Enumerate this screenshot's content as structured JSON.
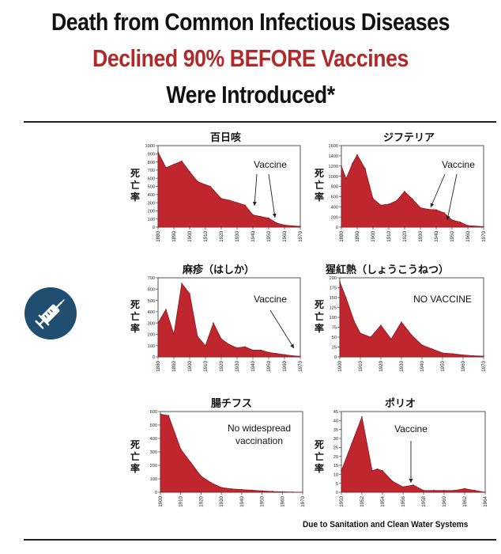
{
  "header": {
    "line1": "Death from Common Infectious Diseases",
    "line2": "Declined 90% BEFORE Vaccines",
    "line3": "Were Introduced*"
  },
  "footnote": "Due to Sanitation and Clean Water Systems",
  "icon": "syringe-icon",
  "colors": {
    "fill": "#c0262e",
    "accent": "#b02a2a",
    "badge": "#1f4e70"
  },
  "chart_data": [
    {
      "type": "area",
      "title": "百日咳",
      "ylabel": "死亡率",
      "x": [
        1880,
        1885,
        1890,
        1895,
        1900,
        1905,
        1910,
        1913,
        1920,
        1925,
        1930,
        1935,
        1940,
        1945,
        1950,
        1955,
        1960,
        1965,
        1970
      ],
      "values": [
        920,
        730,
        770,
        810,
        680,
        560,
        520,
        500,
        350,
        330,
        300,
        270,
        150,
        130,
        110,
        50,
        25,
        15,
        10
      ],
      "xlim": [
        1880,
        1970
      ],
      "ylim": [
        0,
        1000
      ],
      "xticks": [
        "1880",
        "1890",
        "1900",
        "1910",
        "1920",
        "1930",
        "1940",
        "1950",
        "1960",
        "1970"
      ],
      "yticks": [
        "0",
        "100",
        "200",
        "300",
        "400",
        "500",
        "600",
        "700",
        "800",
        "900",
        "1000"
      ],
      "annotation": "Vaccine"
    },
    {
      "type": "area",
      "title": "ジフテリア",
      "ylabel": "死亡率",
      "x": [
        1880,
        1883,
        1887,
        1890,
        1895,
        1900,
        1905,
        1910,
        1915,
        1920,
        1925,
        1930,
        1935,
        1940,
        1945,
        1950,
        1955,
        1960,
        1970
      ],
      "values": [
        1200,
        950,
        1250,
        1420,
        1150,
        560,
        430,
        450,
        520,
        700,
        550,
        380,
        350,
        340,
        280,
        140,
        100,
        30,
        10
      ],
      "xlim": [
        1880,
        1970
      ],
      "ylim": [
        0,
        1600
      ],
      "xticks": [
        "1880",
        "1890",
        "1900",
        "1910",
        "1920",
        "1930",
        "1940",
        "1950",
        "1960",
        "1970"
      ],
      "yticks": [
        "0",
        "200",
        "400",
        "600",
        "800",
        "1000",
        "1200",
        "1400",
        "1600"
      ],
      "annotation": "Vaccine"
    },
    {
      "type": "area",
      "title": "麻疹（はしか）",
      "ylabel": "死亡率",
      "x": [
        1880,
        1885,
        1890,
        1895,
        1900,
        1905,
        1910,
        1915,
        1920,
        1925,
        1930,
        1935,
        1940,
        1945,
        1950,
        1955,
        1960,
        1965,
        1970
      ],
      "values": [
        300,
        420,
        200,
        650,
        560,
        180,
        100,
        300,
        160,
        110,
        80,
        90,
        60,
        60,
        40,
        30,
        20,
        10,
        5
      ],
      "xlim": [
        1880,
        1970
      ],
      "ylim": [
        0,
        700
      ],
      "xticks": [
        "1880",
        "1890",
        "1900",
        "1910",
        "1920",
        "1930",
        "1940",
        "1950",
        "1960",
        "1970"
      ],
      "yticks": [
        "0",
        "100",
        "200",
        "300",
        "400",
        "500",
        "600",
        "700"
      ],
      "annotation": "Vaccine"
    },
    {
      "type": "area",
      "title": "猩紅熱（しょうこうねつ）",
      "ylabel": "死亡率",
      "x": [
        1900,
        1903,
        1907,
        1910,
        1915,
        1920,
        1925,
        1930,
        1935,
        1940,
        1945,
        1950,
        1955,
        1960,
        1965,
        1970
      ],
      "values": [
        190,
        150,
        90,
        60,
        50,
        80,
        45,
        88,
        55,
        30,
        20,
        10,
        8,
        5,
        3,
        2
      ],
      "xlim": [
        1900,
        1970
      ],
      "ylim": [
        0,
        200
      ],
      "xticks": [
        "1900",
        "1910",
        "1920",
        "1930",
        "1940",
        "1950",
        "1960",
        "1970"
      ],
      "yticks": [
        "0",
        "25",
        "50",
        "75",
        "100",
        "125",
        "150",
        "175",
        "200"
      ],
      "annotation": "NO VACCINE"
    },
    {
      "type": "area",
      "title": "腸チフス",
      "ylabel": "死亡率",
      "x": [
        1900,
        1904,
        1910,
        1915,
        1920,
        1925,
        1930,
        1935,
        1940,
        1945,
        1950,
        1955,
        1960,
        1965,
        1970
      ],
      "values": [
        580,
        570,
        320,
        220,
        120,
        70,
        35,
        25,
        20,
        15,
        10,
        6,
        3,
        1,
        0
      ],
      "xlim": [
        1900,
        1970
      ],
      "ylim": [
        0,
        600
      ],
      "xticks": [
        "1900",
        "1910",
        "1920",
        "1930",
        "1940",
        "1950",
        "1960",
        "1970"
      ],
      "yticks": [
        "0",
        "100",
        "200",
        "300",
        "400",
        "500",
        "600"
      ],
      "annotation": "No widespread vaccination"
    },
    {
      "type": "area",
      "title": "ポリオ",
      "ylabel": "死亡率",
      "x": [
        1950,
        1951,
        1952,
        1953,
        1953.5,
        1954,
        1955,
        1956,
        1957,
        1958,
        1959,
        1960,
        1961,
        1962,
        1963,
        1964
      ],
      "values": [
        12,
        27,
        42,
        12,
        13,
        12,
        6,
        3,
        4,
        1,
        1,
        1,
        1,
        2,
        1,
        0
      ],
      "xlim": [
        1950,
        1964
      ],
      "ylim": [
        0,
        45
      ],
      "xticks": [
        "1950",
        "1952",
        "1954",
        "1956",
        "1958",
        "1960",
        "1962",
        "1964"
      ],
      "yticks": [
        "0",
        "5",
        "10",
        "15",
        "20",
        "25",
        "30",
        "35",
        "40",
        "45"
      ],
      "annotation": "Vaccine"
    }
  ]
}
